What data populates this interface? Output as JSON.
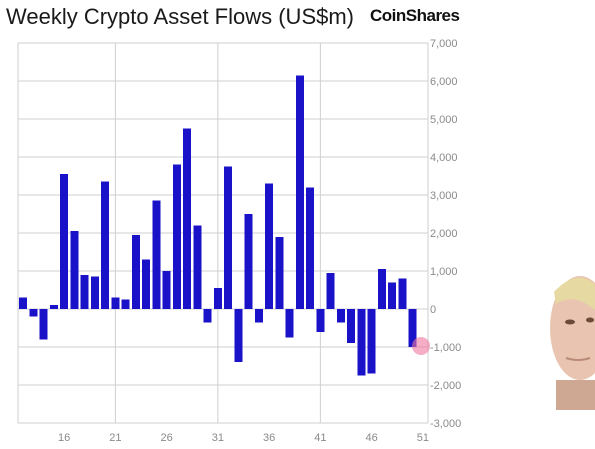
{
  "header": {
    "title": "Weekly Crypto Asset Flows (US$m)",
    "brand": "CoinShares"
  },
  "colors": {
    "bar": "#1a12c8",
    "grid": "#cfcfcf",
    "tick_text": "#8a8a8a",
    "marker": "#f078a0"
  },
  "chart_data": {
    "type": "bar",
    "title": "Weekly Crypto Asset Flows (US$m)",
    "xlabel": "",
    "ylabel": "",
    "ylim": [
      -3000,
      7000
    ],
    "yticks": [
      7000,
      6000,
      5000,
      4000,
      3000,
      2000,
      1000,
      0,
      -1000,
      -2000,
      -3000
    ],
    "ytick_labels": [
      "7,000",
      "6,000",
      "5,000",
      "4,000",
      "3,000",
      "2,000",
      "1,000",
      "0",
      "-1,000",
      "-2,000",
      "-3,000"
    ],
    "x_axis": {
      "ticks": [
        16,
        21,
        26,
        31,
        36,
        41,
        46,
        51
      ],
      "grid_at": [
        21,
        31,
        41
      ]
    },
    "x": [
      12,
      13,
      14,
      15,
      16,
      17,
      18,
      19,
      20,
      21,
      22,
      23,
      24,
      25,
      26,
      27,
      28,
      29,
      30,
      31,
      32,
      33,
      34,
      35,
      36,
      37,
      38,
      39,
      40,
      41,
      42,
      43,
      44,
      45,
      46,
      47,
      48,
      49,
      50,
      51
    ],
    "values": [
      300,
      -200,
      -800,
      100,
      3550,
      2050,
      900,
      850,
      3350,
      300,
      250,
      1950,
      1300,
      2850,
      1000,
      3800,
      4750,
      2200,
      -350,
      550,
      3750,
      -1400,
      2500,
      -350,
      3300,
      1900,
      -750,
      6150,
      3200,
      -600,
      950,
      -350,
      -900,
      -1750,
      -1700,
      1050,
      700,
      800,
      -1000,
      0
    ],
    "grid": true,
    "legend": "none"
  }
}
